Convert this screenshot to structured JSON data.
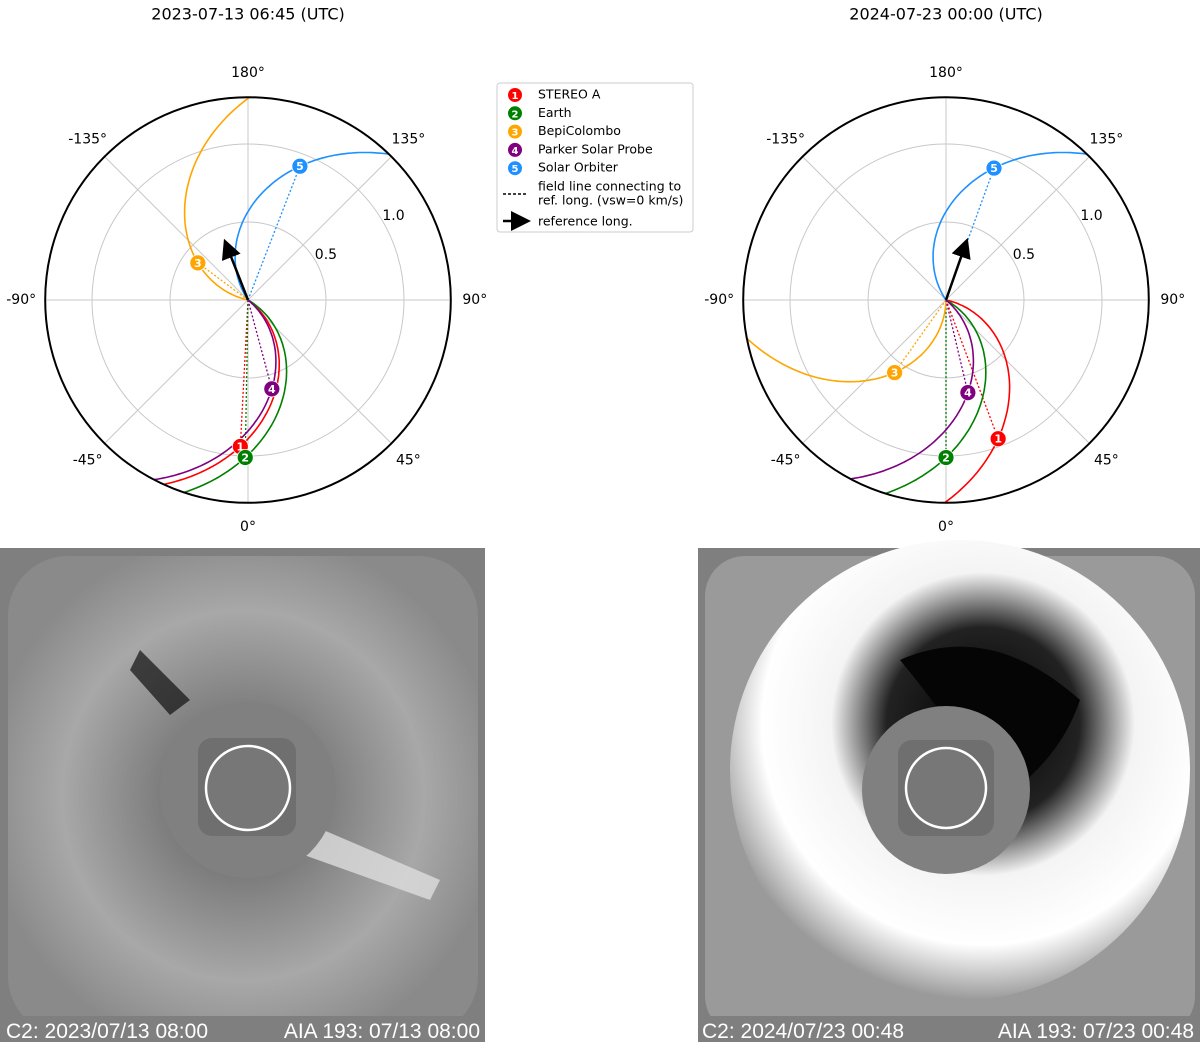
{
  "chart_data": [
    {
      "type": "polar",
      "title": "2023-07-13 06:45 (UTC)",
      "rlim": [
        0,
        1.3
      ],
      "rticks": [
        0.5,
        {
          "value": 1,
          "label": "1.0"
        }
      ],
      "thetaticks": [
        {
          "value": 0,
          "label": "0°"
        },
        {
          "value": 45,
          "label": "45°"
        },
        {
          "value": 90,
          "label": "90°"
        },
        {
          "value": 135,
          "label": "135°"
        },
        {
          "value": 180,
          "label": "180°"
        },
        {
          "value": -135,
          "label": "-135°"
        },
        {
          "value": -90,
          "label": "-90°"
        },
        {
          "value": -45,
          "label": "-45°"
        }
      ],
      "reference_theta": -158.6,
      "series": [
        {
          "name": "STEREO A",
          "marker": "1",
          "color": "#ff0000",
          "r": [
            0.94
          ],
          "theta": [
            -3
          ]
        },
        {
          "name": "Earth",
          "marker": "2",
          "color": "#008000",
          "r": [
            1.01
          ],
          "theta": [
            -1
          ]
        },
        {
          "name": "BepiColombo",
          "marker": "3",
          "color": "#ffa500",
          "r": [
            0.4
          ],
          "theta": [
            -126.5
          ]
        },
        {
          "name": "Parker Solar Probe",
          "marker": "4",
          "color": "#800080",
          "r": [
            0.59
          ],
          "theta": [
            15
          ]
        },
        {
          "name": "Solar Orbiter",
          "marker": "5",
          "color": "#1e90ff",
          "r": [
            0.92
          ],
          "theta": [
            158.8
          ]
        }
      ]
    },
    {
      "type": "polar",
      "title": "2024-07-23 00:00 (UTC)",
      "rlim": [
        0,
        1.3
      ],
      "rticks": [
        0.5,
        {
          "value": 1,
          "label": "1.0"
        }
      ],
      "thetaticks": [
        {
          "value": 0,
          "label": "0°"
        },
        {
          "value": 45,
          "label": "45°"
        },
        {
          "value": 90,
          "label": "90°"
        },
        {
          "value": 135,
          "label": "135°"
        },
        {
          "value": 180,
          "label": "180°"
        },
        {
          "value": -135,
          "label": "-135°"
        },
        {
          "value": -90,
          "label": "-90°"
        },
        {
          "value": -45,
          "label": "-45°"
        }
      ],
      "reference_theta": 160.7,
      "series": [
        {
          "name": "STEREO A",
          "marker": "1",
          "color": "#ff0000",
          "r": [
            0.95
          ],
          "theta": [
            20.6
          ]
        },
        {
          "name": "Earth",
          "marker": "2",
          "color": "#008000",
          "r": [
            1.01
          ],
          "theta": [
            0
          ]
        },
        {
          "name": "BepiColombo",
          "marker": "3",
          "color": "#ffa500",
          "r": [
            0.57
          ],
          "theta": [
            -35.3
          ]
        },
        {
          "name": "Parker Solar Probe",
          "marker": "4",
          "color": "#800080",
          "r": [
            0.61
          ],
          "theta": [
            13.3
          ]
        },
        {
          "name": "Solar Orbiter",
          "marker": "5",
          "color": "#1e90ff",
          "r": [
            0.9
          ],
          "theta": [
            160
          ]
        }
      ]
    }
  ],
  "legend": {
    "field_line": [
      "field line connecting to",
      "ref. long. (vsw=0 km/s)"
    ],
    "reference": "reference long."
  },
  "images": [
    {
      "c2": "C2: 2023/07/13 08:00",
      "aia": "AIA 193: 07/13 08:00"
    },
    {
      "c2": "C2: 2024/07/23 00:48",
      "aia": "AIA 193: 07/23 00:48"
    }
  ]
}
